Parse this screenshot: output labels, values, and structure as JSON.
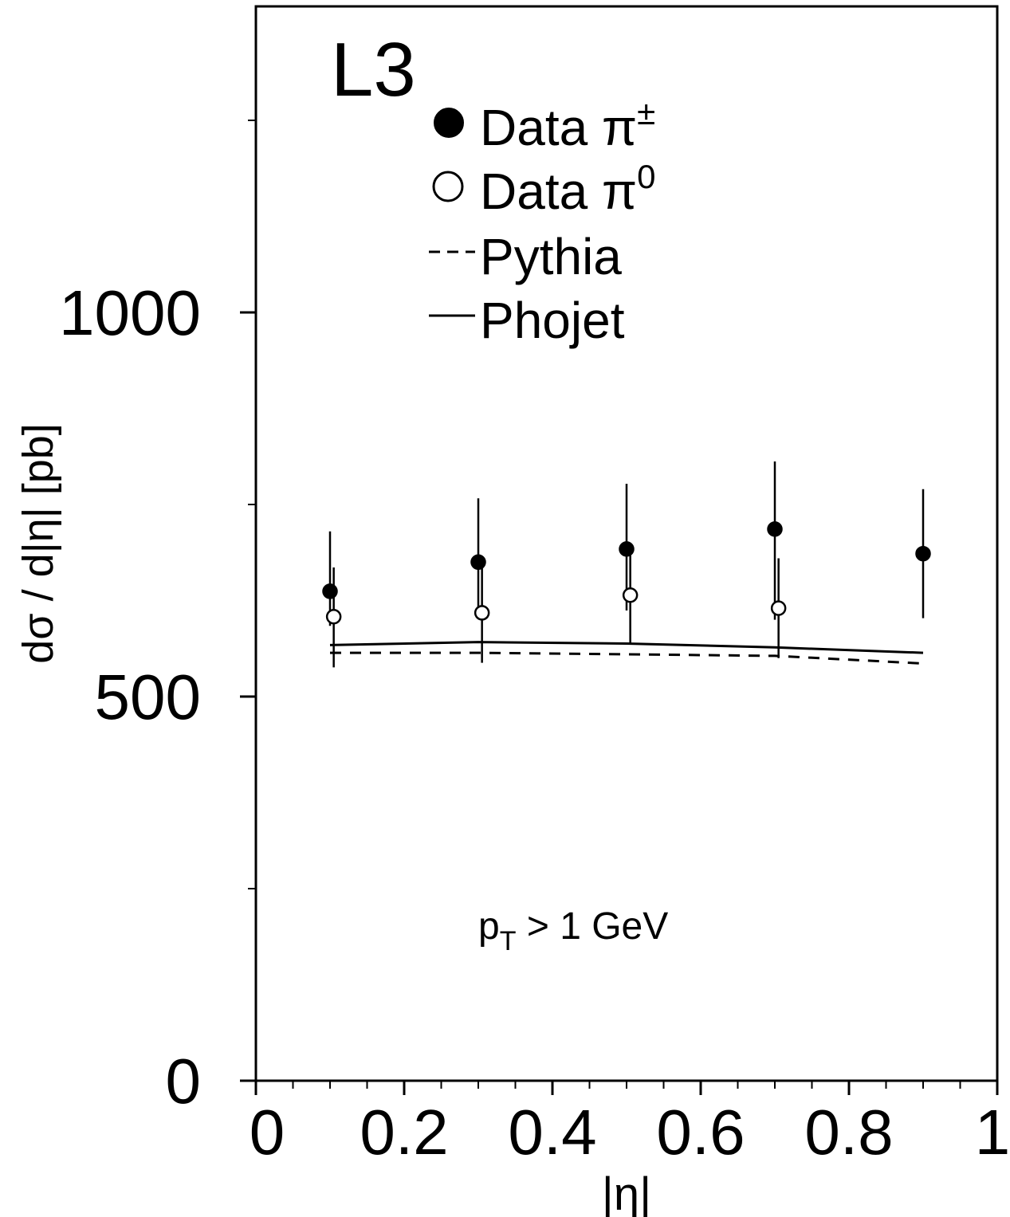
{
  "chart_data": {
    "type": "scatter",
    "experiment_label": "L3",
    "xlabel": "|η|",
    "ylabel": "dσ / d|η| [pb]",
    "annotation": {
      "main": "p",
      "sub": "T",
      "rest": " > 1 GeV"
    },
    "xlim": [
      0,
      1
    ],
    "ylim": [
      0,
      1450
    ],
    "x_ticks": [
      {
        "value": 0,
        "label": "0"
      },
      {
        "value": 0.2,
        "label": "0.2"
      },
      {
        "value": 0.4,
        "label": "0.4"
      },
      {
        "value": 0.6,
        "label": "0.6"
      },
      {
        "value": 0.8,
        "label": "0.8"
      },
      {
        "value": 1,
        "label": "1"
      }
    ],
    "y_ticks": [
      {
        "value": 0,
        "label": "0"
      },
      {
        "value": 500,
        "label": "500"
      },
      {
        "value": 1000,
        "label": "1000"
      }
    ],
    "x_minor_step": 0.05,
    "y_minor_step": 250,
    "legend": {
      "placement": "top-center",
      "entries": [
        {
          "marker": "filled-circle",
          "text": "Data π",
          "sup": "±"
        },
        {
          "marker": "open-circle",
          "text": "Data π",
          "sup": "0"
        },
        {
          "marker": "dashed-line",
          "text": "Pythia",
          "sup": ""
        },
        {
          "marker": "solid-line",
          "text": "Phojet",
          "sup": ""
        }
      ]
    },
    "series": [
      {
        "name": "Data π±",
        "style": "filled-circle",
        "points": [
          {
            "x": 0.1,
            "y": 637,
            "err_low": 592,
            "err_high": 715
          },
          {
            "x": 0.3,
            "y": 675,
            "err_low": 610,
            "err_high": 758
          },
          {
            "x": 0.5,
            "y": 692,
            "err_low": 612,
            "err_high": 777
          },
          {
            "x": 0.7,
            "y": 718,
            "err_low": 600,
            "err_high": 806
          },
          {
            "x": 0.9,
            "y": 686,
            "err_low": 602,
            "err_high": 770
          }
        ]
      },
      {
        "name": "Data π0",
        "style": "open-circle",
        "points": [
          {
            "x": 0.105,
            "y": 604,
            "err_low": 538,
            "err_high": 668
          },
          {
            "x": 0.305,
            "y": 609,
            "err_low": 544,
            "err_high": 674
          },
          {
            "x": 0.505,
            "y": 632,
            "err_low": 568,
            "err_high": 697
          },
          {
            "x": 0.705,
            "y": 615,
            "err_low": 550,
            "err_high": 680
          }
        ]
      },
      {
        "name": "Pythia",
        "style": "dashed-line",
        "points": [
          {
            "x": 0.1,
            "y": 557
          },
          {
            "x": 0.3,
            "y": 557
          },
          {
            "x": 0.5,
            "y": 555
          },
          {
            "x": 0.7,
            "y": 553
          },
          {
            "x": 0.9,
            "y": 543
          }
        ]
      },
      {
        "name": "Phojet",
        "style": "solid-line",
        "points": [
          {
            "x": 0.1,
            "y": 567
          },
          {
            "x": 0.3,
            "y": 571
          },
          {
            "x": 0.5,
            "y": 569
          },
          {
            "x": 0.7,
            "y": 564
          },
          {
            "x": 0.9,
            "y": 557
          }
        ]
      }
    ]
  }
}
